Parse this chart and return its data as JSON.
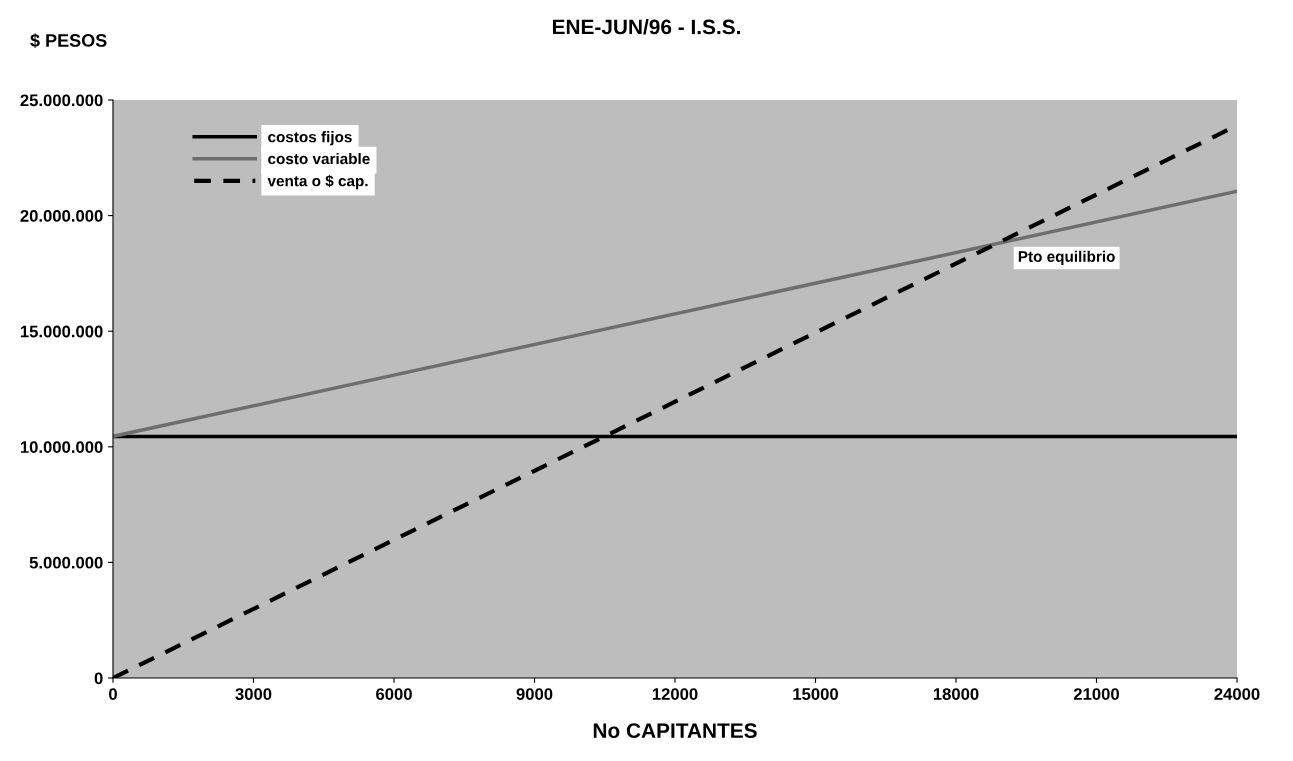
{
  "chart_data": {
    "type": "line",
    "title": "ENE-JUN/96 - I.S.S.",
    "ylabel": "$ PESOS",
    "xlabel": "No CAPITANTES",
    "x": [
      0,
      24000
    ],
    "series": [
      {
        "name": "costos fijos",
        "color": "#000000",
        "line_style": "solid",
        "values": [
          10450000,
          10450000
        ]
      },
      {
        "name": "costo variable",
        "color": "#6e6e6e",
        "line_style": "solid",
        "values": [
          10450000,
          21050000
        ]
      },
      {
        "name": "venta o $ cap.",
        "color": "#000000",
        "line_style": "dashed",
        "values": [
          0,
          23900000
        ]
      }
    ],
    "xlim": [
      0,
      24000
    ],
    "xticks": [
      0,
      3000,
      6000,
      9000,
      12000,
      15000,
      18000,
      21000,
      24000
    ],
    "ylim": [
      0,
      25000000
    ],
    "yticks": [
      {
        "value": 0,
        "label": "0"
      },
      {
        "value": 5000000,
        "label": "5.000.000"
      },
      {
        "value": 10000000,
        "label": "10.000.000"
      },
      {
        "value": 15000000,
        "label": "15.000.000"
      },
      {
        "value": 20000000,
        "label": "20.000.000"
      },
      {
        "value": 25000000,
        "label": "25.000.000"
      }
    ],
    "annotations": [
      "Pto equilibrio"
    ],
    "grid": false,
    "legend": "top left",
    "marker": "none"
  }
}
